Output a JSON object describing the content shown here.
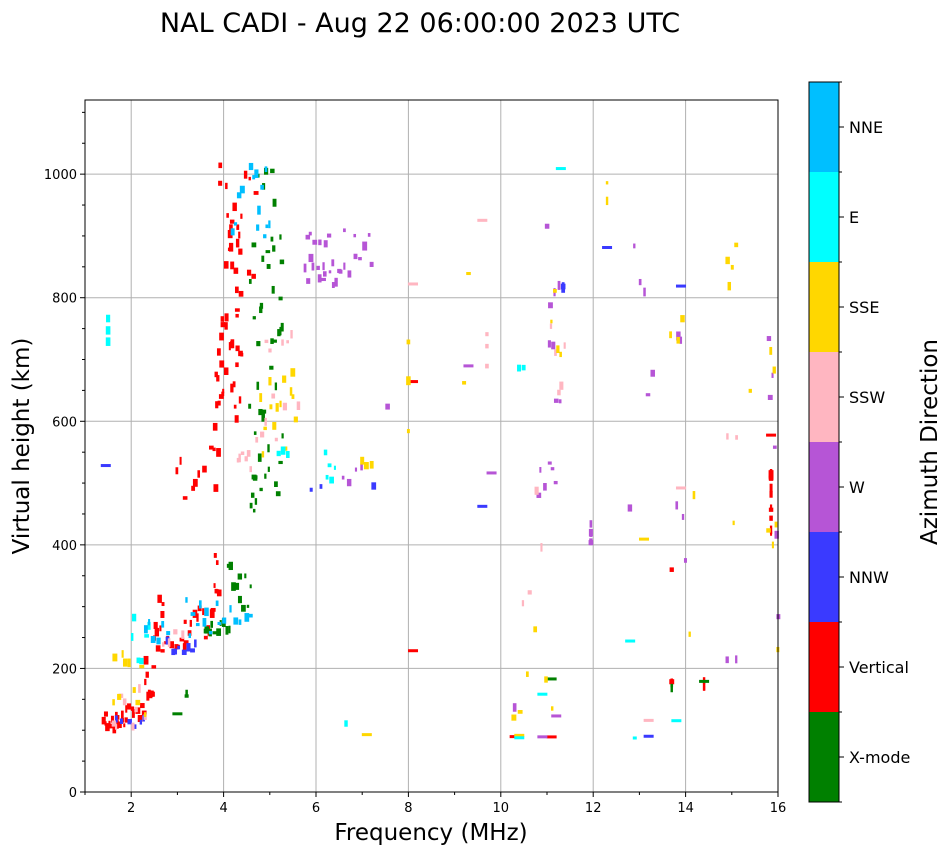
{
  "chart_data": {
    "type": "scatter",
    "title": "NAL CADI - Aug 22 06:00:00 2023 UTC",
    "xlabel": "Frequency (MHz)",
    "ylabel": "Virtual height (km)",
    "xlim": [
      1,
      16
    ],
    "ylim": [
      0,
      1120
    ],
    "xticks": [
      2,
      4,
      6,
      8,
      10,
      12,
      14,
      16
    ],
    "yticks": [
      0,
      200,
      400,
      600,
      800,
      1000
    ],
    "grid": true,
    "colorbar": {
      "label": "Azimuth Direction",
      "categories": [
        {
          "name": "X-mode",
          "color": "#008000"
        },
        {
          "name": "Vertical",
          "color": "#ff0000"
        },
        {
          "name": "NNW",
          "color": "#3a3aff"
        },
        {
          "name": "W",
          "color": "#b655d6"
        },
        {
          "name": "SSW",
          "color": "#ffb6c1"
        },
        {
          "name": "SSE",
          "color": "#ffd700"
        },
        {
          "name": "E",
          "color": "#00ffff"
        },
        {
          "name": "NNE",
          "color": "#00bfff"
        }
      ]
    },
    "series": [
      {
        "name": "Vertical",
        "segments": [
          [
            1.4,
            1.9,
            100,
            125,
            16
          ],
          [
            1.9,
            2.3,
            118,
            145,
            8
          ],
          [
            2.3,
            2.5,
            140,
            220,
            10
          ],
          [
            2.5,
            2.7,
            230,
            320,
            8
          ],
          [
            2.7,
            3.2,
            230,
            250,
            10
          ],
          [
            3.2,
            3.8,
            250,
            300,
            12
          ],
          [
            3.8,
            3.9,
            300,
            390,
            6
          ],
          [
            3.0,
            3.7,
            455,
            560,
            8
          ],
          [
            3.8,
            3.9,
            490,
            700,
            8
          ],
          [
            3.9,
            4.4,
            560,
            1015,
            40
          ],
          [
            4.2,
            4.7,
            700,
            1000,
            10
          ],
          [
            8.1,
            8.1,
            663,
            663,
            1
          ],
          [
            8.1,
            8.1,
            230,
            230,
            1
          ],
          [
            10.3,
            10.3,
            90,
            90,
            1
          ],
          [
            11.1,
            11.1,
            92,
            92,
            1
          ],
          [
            13.7,
            13.7,
            355,
            360,
            2
          ],
          [
            13.7,
            13.7,
            175,
            180,
            2
          ],
          [
            14.4,
            14.4,
            168,
            185,
            3
          ],
          [
            15.85,
            15.85,
            418,
            545,
            12
          ],
          [
            15.85,
            15.85,
            577,
            577,
            1
          ]
        ]
      },
      {
        "name": "X-mode",
        "segments": [
          [
            3.6,
            4.1,
            258,
            275,
            10
          ],
          [
            4.1,
            4.6,
            275,
            375,
            10
          ],
          [
            4.6,
            4.7,
            450,
            560,
            4
          ],
          [
            4.6,
            5.3,
            460,
            1015,
            45
          ],
          [
            3.2,
            3.2,
            150,
            160,
            2
          ],
          [
            3.0,
            3.0,
            125,
            125,
            1
          ],
          [
            11.1,
            11.1,
            180,
            180,
            1
          ],
          [
            13.7,
            13.7,
            168,
            172,
            2
          ],
          [
            14.4,
            14.4,
            180,
            180,
            1
          ]
        ]
      },
      {
        "name": "W",
        "segments": [
          [
            5.8,
            6.5,
            820,
            865,
            14
          ],
          [
            6.5,
            7.2,
            830,
            915,
            10
          ],
          [
            5.8,
            6.3,
            880,
            915,
            6
          ],
          [
            6.6,
            7.0,
            500,
            525,
            4
          ],
          [
            11.95,
            11.95,
            385,
            435,
            6
          ],
          [
            10.8,
            11.2,
            450,
            600,
            6
          ],
          [
            11.0,
            11.3,
            620,
            960,
            8
          ],
          [
            12.8,
            13.3,
            450,
            935,
            6
          ],
          [
            13.8,
            14.0,
            325,
            820,
            5
          ],
          [
            15.8,
            16.0,
            160,
            980,
            6
          ],
          [
            10.3,
            10.3,
            135,
            140,
            2
          ],
          [
            10.9,
            10.9,
            90,
            90,
            1
          ],
          [
            14.9,
            15.1,
            210,
            215,
            2
          ],
          [
            7.5,
            7.6,
            625,
            625,
            1
          ],
          [
            9.3,
            9.3,
            690,
            690,
            1
          ],
          [
            9.8,
            9.8,
            517,
            517,
            1
          ],
          [
            11.2,
            11.2,
            125,
            125,
            1
          ]
        ]
      },
      {
        "name": "NNW",
        "segments": [
          [
            1.7,
            2.3,
            100,
            120,
            6
          ],
          [
            2.8,
            3.4,
            225,
            255,
            8
          ],
          [
            5.9,
            6.1,
            460,
            500,
            2
          ],
          [
            7.2,
            7.3,
            495,
            495,
            1
          ],
          [
            9.6,
            9.6,
            460,
            460,
            1
          ],
          [
            11.35,
            11.35,
            770,
            880,
            3
          ],
          [
            12.3,
            12.3,
            880,
            880,
            1
          ],
          [
            13.9,
            13.9,
            820,
            820,
            1
          ],
          [
            13.2,
            13.2,
            88,
            88,
            1
          ],
          [
            1.45,
            1.45,
            527,
            527,
            1
          ]
        ]
      },
      {
        "name": "SSW",
        "segments": [
          [
            1.6,
            2.3,
            100,
            180,
            8
          ],
          [
            2.7,
            3.1,
            235,
            260,
            4
          ],
          [
            4.3,
            4.6,
            510,
            560,
            6
          ],
          [
            4.7,
            5.6,
            560,
            740,
            12
          ],
          [
            9.7,
            9.7,
            630,
            770,
            3
          ],
          [
            11.1,
            11.4,
            545,
            780,
            5
          ],
          [
            10.5,
            10.9,
            300,
            500,
            4
          ],
          [
            13.2,
            13.2,
            118,
            118,
            1
          ],
          [
            13.9,
            13.9,
            495,
            495,
            1
          ],
          [
            14.9,
            15.1,
            575,
            577,
            2
          ],
          [
            8.1,
            8.1,
            820,
            820,
            1
          ],
          [
            9.6,
            9.6,
            928,
            928,
            1
          ]
        ]
      },
      {
        "name": "SSE",
        "segments": [
          [
            1.6,
            2.3,
            95,
            230,
            10
          ],
          [
            4.8,
            5.6,
            540,
            680,
            14
          ],
          [
            7.0,
            7.2,
            525,
            535,
            3
          ],
          [
            7.1,
            7.1,
            90,
            90,
            1
          ],
          [
            8.0,
            8.0,
            515,
            780,
            3
          ],
          [
            9.2,
            9.3,
            520,
            1010,
            2
          ],
          [
            10.3,
            11.1,
            110,
            300,
            6
          ],
          [
            11.1,
            11.3,
            680,
            870,
            4
          ],
          [
            12.3,
            12.3,
            950,
            1010,
            2
          ],
          [
            13.1,
            13.1,
            410,
            410,
            1
          ],
          [
            13.7,
            14.2,
            195,
            865,
            5
          ],
          [
            14.9,
            15.1,
            220,
            1013,
            5
          ],
          [
            15.3,
            15.5,
            650,
            650,
            1
          ],
          [
            15.8,
            16.0,
            195,
            1013,
            6
          ],
          [
            10.4,
            10.4,
            92,
            92,
            1
          ]
        ]
      },
      {
        "name": "E",
        "segments": [
          [
            1.5,
            1.5,
            722,
            770,
            3
          ],
          [
            2.0,
            2.4,
            205,
            280,
            6
          ],
          [
            5.2,
            5.4,
            540,
            560,
            3
          ],
          [
            6.2,
            6.4,
            500,
            555,
            5
          ],
          [
            6.6,
            6.7,
            110,
            110,
            1
          ],
          [
            10.4,
            10.4,
            90,
            90,
            1
          ],
          [
            10.9,
            10.9,
            160,
            160,
            1
          ],
          [
            10.4,
            10.5,
            685,
            688,
            2
          ],
          [
            12.8,
            13.0,
            88,
            88,
            1
          ],
          [
            12.8,
            12.8,
            245,
            245,
            1
          ],
          [
            13.8,
            13.8,
            115,
            115,
            1
          ],
          [
            11.3,
            11.3,
            1012,
            1012,
            1
          ]
        ]
      },
      {
        "name": "NNE",
        "segments": [
          [
            2.3,
            2.8,
            230,
            280,
            6
          ],
          [
            3.2,
            3.9,
            230,
            320,
            10
          ],
          [
            4.0,
            4.6,
            275,
            300,
            6
          ],
          [
            4.6,
            5.0,
            890,
            1015,
            10
          ],
          [
            4.2,
            4.4,
            900,
            1000,
            4
          ]
        ]
      }
    ]
  }
}
